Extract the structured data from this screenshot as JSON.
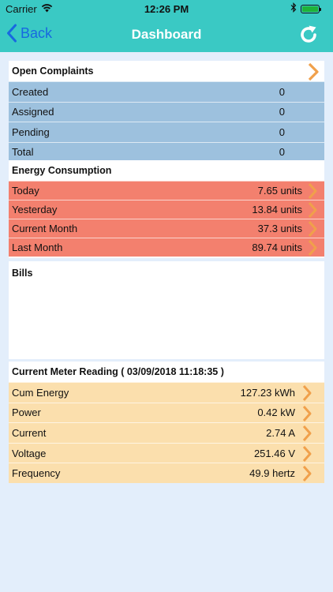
{
  "status_bar": {
    "carrier": "Carrier",
    "time": "12:26 PM",
    "battery_color": "#1fb23a"
  },
  "nav": {
    "back_label": "Back",
    "title": "Dashboard",
    "bar_color": "#3ac9c4",
    "back_color": "#1769e0",
    "back_icon": "chevron-left-icon",
    "refresh_icon": "refresh-icon"
  },
  "open_complaints": {
    "title": "Open Complaints",
    "rows": [
      {
        "label": "Created",
        "value": "0"
      },
      {
        "label": "Assigned",
        "value": "0"
      },
      {
        "label": "Pending",
        "value": "0"
      },
      {
        "label": "Total",
        "value": "0"
      }
    ],
    "row_color": "#9dc1de"
  },
  "energy": {
    "title": "Energy Consumption",
    "rows": [
      {
        "label": "Today",
        "value": "7.65 units"
      },
      {
        "label": "Yesterday",
        "value": "13.84 units"
      },
      {
        "label": "Current Month",
        "value": "37.3 units"
      },
      {
        "label": "Last Month",
        "value": "89.74 units"
      }
    ],
    "row_color": "#f3806e"
  },
  "bills": {
    "title": "Bills"
  },
  "meter": {
    "title": "Current Meter Reading ( 03/09/2018 11:18:35 )",
    "rows": [
      {
        "label": "Cum Energy",
        "value": "127.23 kWh"
      },
      {
        "label": "Power",
        "value": "0.42 kW"
      },
      {
        "label": "Current",
        "value": "2.74 A"
      },
      {
        "label": "Voltage",
        "value": "251.46 V"
      },
      {
        "label": "Frequency",
        "value": "49.9 hertz"
      }
    ],
    "row_color": "#fbdfad"
  },
  "accent_color": "#f0a04b",
  "chevron_icon": "chevron-right-icon"
}
